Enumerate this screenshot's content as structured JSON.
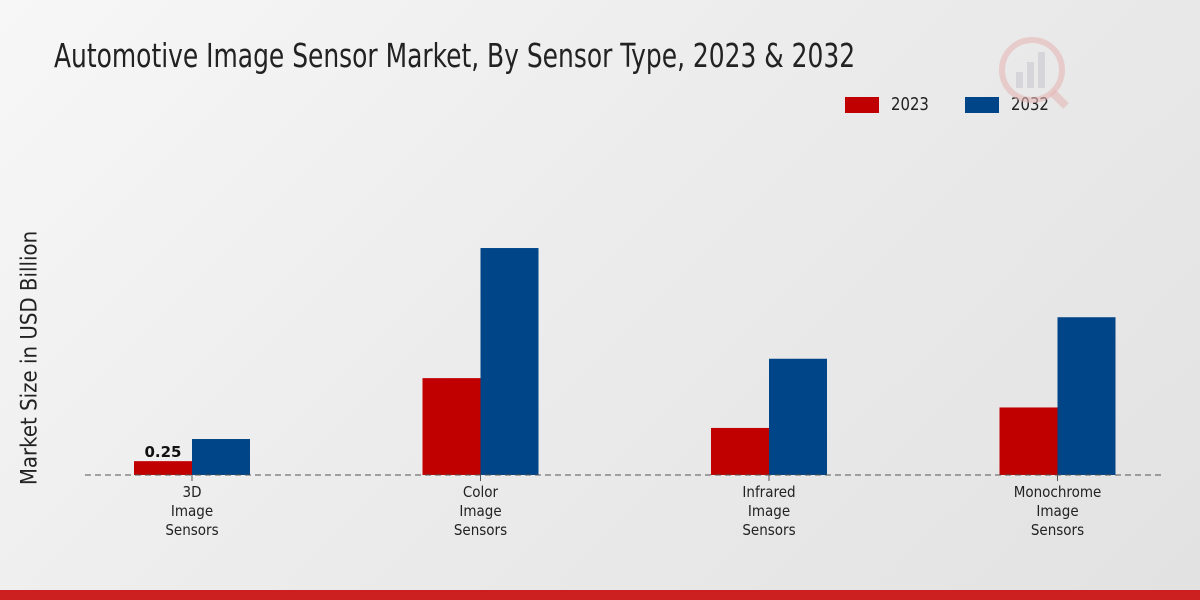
{
  "chart_data": {
    "type": "bar",
    "title": "Automotive Image Sensor Market, By Sensor Type, 2023 & 2032",
    "ylabel": "Market Size in USD Billion",
    "xlabel": "",
    "categories": [
      [
        "3D",
        "Image",
        "Sensors"
      ],
      [
        "Color",
        "Image",
        "Sensors"
      ],
      [
        "Infrared",
        "Image",
        "Sensors"
      ],
      [
        "Monochrome",
        "Image",
        "Sensors"
      ]
    ],
    "series": [
      {
        "name": "2023",
        "color": "#c00000",
        "values": [
          0.25,
          1.75,
          0.85,
          1.22
        ]
      },
      {
        "name": "2032",
        "color": "#004587",
        "values": [
          0.65,
          4.1,
          2.1,
          2.85
        ]
      }
    ],
    "data_labels": [
      {
        "series": 0,
        "index": 0,
        "text": "0.25"
      }
    ],
    "ylim": [
      0,
      5.6
    ],
    "grid": false,
    "legend": "top-right"
  }
}
